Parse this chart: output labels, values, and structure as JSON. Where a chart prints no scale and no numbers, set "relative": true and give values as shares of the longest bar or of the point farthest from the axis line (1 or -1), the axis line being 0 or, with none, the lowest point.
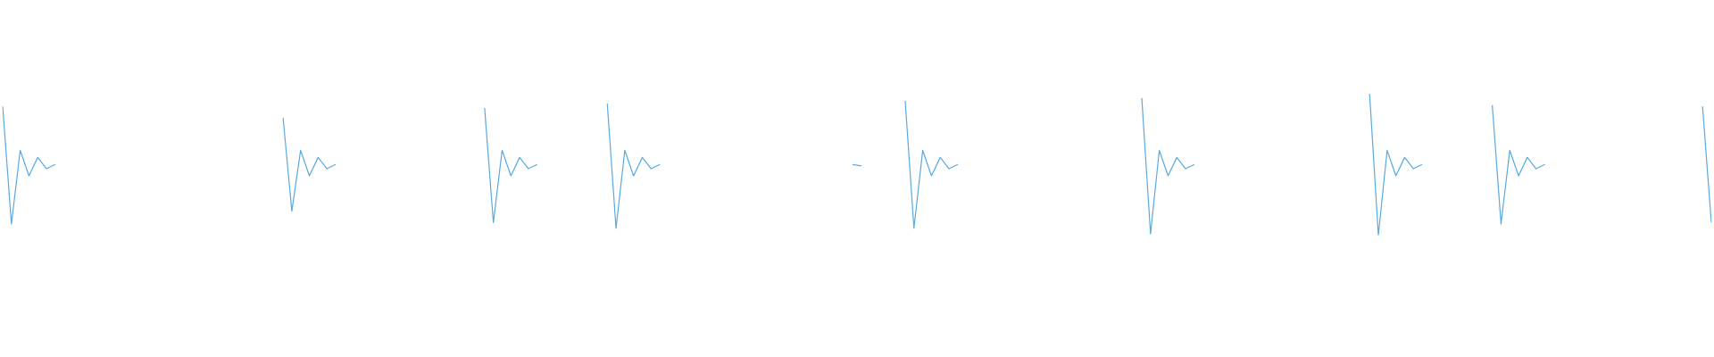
{
  "chart_data": {
    "type": "line",
    "relative": true,
    "grid": false,
    "legend": false,
    "marker": "none",
    "line_style": "solid",
    "categories": [
      null,
      null,
      null,
      null,
      null,
      null,
      null,
      null,
      null,
      null,
      null,
      null,
      null,
      null,
      null,
      null,
      null,
      null,
      null,
      null,
      null,
      null,
      null,
      null,
      null,
      null,
      null,
      null,
      null,
      null,
      null,
      null,
      null,
      null,
      null,
      null,
      null,
      null,
      null,
      null,
      null,
      null,
      null,
      null,
      null,
      null,
      null,
      null,
      null,
      null,
      null,
      null,
      null,
      null,
      null,
      null,
      null,
      null,
      null,
      null,
      null,
      null,
      null,
      null,
      null,
      null,
      null,
      null,
      null,
      null,
      null,
      null,
      null,
      null,
      null,
      null,
      null,
      null,
      null,
      null,
      null,
      null,
      null,
      null,
      null,
      null,
      null,
      null,
      null,
      null,
      null,
      null,
      null,
      null,
      null,
      null,
      null,
      null,
      null,
      null,
      null,
      null,
      null,
      null,
      null,
      null,
      null,
      null,
      null,
      null,
      null,
      null,
      null,
      null,
      null,
      null,
      null,
      null,
      null,
      null,
      null,
      null,
      null,
      null,
      null,
      null,
      null,
      null,
      null,
      null,
      null,
      null,
      null,
      null,
      null,
      null,
      null,
      null,
      null,
      null,
      null,
      null,
      null,
      null,
      null,
      null,
      null,
      null,
      null,
      null,
      null,
      null,
      null,
      null,
      null,
      null,
      null,
      null,
      null,
      null,
      null,
      null,
      null,
      null,
      null,
      null,
      null,
      null,
      null,
      null,
      null,
      null,
      null,
      null,
      null,
      null,
      null,
      null,
      null,
      null,
      null,
      null,
      null,
      null,
      null,
      null,
      null,
      null,
      null,
      null,
      null,
      null,
      null,
      null,
      null,
      null
    ],
    "series": [
      {
        "color": "#5aa9e0",
        "values": [
          0.91,
          0.08,
          0.6,
          0.42,
          0.55,
          0.47,
          0.5,
          null,
          null,
          null,
          null,
          null,
          null,
          null,
          null,
          null,
          null,
          null,
          null,
          null,
          null,
          null,
          null,
          null,
          null,
          null,
          null,
          null,
          null,
          null,
          null,
          null,
          null,
          null,
          null,
          null,
          null,
          null,
          null,
          null,
          null,
          null,
          null,
          null,
          null,
          null,
          null,
          null,
          null,
          null,
          null,
          null,
          null,
          null,
          null,
          null,
          null,
          null,
          null,
          null,
          null,
          null,
          null,
          null,
          null,
          null,
          null,
          null,
          null,
          null,
          null,
          null,
          null,
          null,
          null,
          null,
          null,
          null,
          null,
          null,
          null,
          null,
          null,
          null,
          null,
          null,
          null,
          null,
          null,
          null,
          null,
          null,
          null,
          null,
          null,
          null,
          null,
          null,
          null,
          null,
          null,
          null,
          null,
          null,
          null,
          null,
          null,
          null,
          null,
          null,
          null,
          null,
          null,
          null,
          null,
          null,
          null,
          null,
          null,
          null,
          null,
          null,
          null,
          null,
          null,
          null,
          null,
          null,
          null,
          null,
          null,
          null,
          null,
          null,
          null,
          null,
          null,
          null,
          null,
          null,
          null,
          null,
          null,
          null,
          null,
          null,
          null,
          null,
          null,
          null,
          null,
          null,
          null,
          null,
          null,
          null,
          null,
          null,
          null,
          null,
          null,
          null,
          null,
          null,
          null,
          null,
          null,
          null,
          null,
          null,
          null,
          null,
          null,
          null,
          null,
          null,
          null,
          null,
          null,
          null,
          null,
          null,
          null,
          null,
          null,
          null,
          null,
          null,
          null,
          null,
          null,
          null,
          null,
          null,
          null,
          null
        ]
      },
      {
        "color": "#5aa9e0",
        "values": [
          null,
          null,
          null,
          null,
          null,
          null,
          null,
          null,
          null,
          null,
          null,
          null,
          null,
          null,
          null,
          null,
          null,
          null,
          null,
          null,
          null,
          null,
          null,
          null,
          null,
          null,
          null,
          null,
          null,
          null,
          null,
          null,
          0.83,
          0.17,
          0.6,
          0.42,
          0.55,
          0.47,
          0.5,
          null,
          null,
          null,
          null,
          null,
          null,
          null,
          null,
          null,
          null,
          null,
          null,
          null,
          null,
          null,
          null,
          null,
          null,
          null,
          null,
          null,
          null,
          null,
          null,
          null,
          null,
          null,
          null,
          null,
          null,
          null,
          null,
          null,
          null,
          null,
          null,
          null,
          null,
          null,
          null,
          null,
          null,
          null,
          null,
          null,
          null,
          null,
          null,
          null,
          null,
          null,
          null,
          null,
          null,
          null,
          null,
          null,
          null,
          null,
          null,
          null,
          null,
          null,
          null,
          null,
          null,
          null,
          null,
          null,
          null,
          null,
          null,
          null,
          null,
          null,
          null,
          null,
          null,
          null,
          null,
          null,
          null,
          null,
          null,
          null,
          null,
          null,
          null,
          null,
          null,
          null,
          null,
          null,
          null,
          null,
          null,
          null,
          null,
          null,
          null,
          null,
          null,
          null,
          null,
          null,
          null,
          null,
          null,
          null,
          null,
          null,
          null,
          null,
          null,
          null,
          null,
          null,
          null,
          null,
          null,
          null,
          null,
          null,
          null,
          null,
          null,
          null,
          null,
          null,
          null,
          null,
          null,
          null,
          null,
          null,
          null,
          null,
          null,
          null,
          null,
          null,
          null,
          null,
          null,
          null,
          null,
          null,
          null,
          null,
          null,
          null,
          null,
          null,
          null,
          null,
          null,
          null
        ]
      },
      {
        "color": "#5aa9e0",
        "values": [
          null,
          null,
          null,
          null,
          null,
          null,
          null,
          null,
          null,
          null,
          null,
          null,
          null,
          null,
          null,
          null,
          null,
          null,
          null,
          null,
          null,
          null,
          null,
          null,
          null,
          null,
          null,
          null,
          null,
          null,
          null,
          null,
          null,
          null,
          null,
          null,
          null,
          null,
          null,
          null,
          null,
          null,
          null,
          null,
          null,
          null,
          null,
          null,
          null,
          null,
          null,
          null,
          null,
          null,
          null,
          0.9,
          0.09,
          0.6,
          0.42,
          0.55,
          0.47,
          0.5,
          null,
          null,
          null,
          null,
          null,
          null,
          null,
          null,
          null,
          null,
          null,
          null,
          null,
          null,
          null,
          null,
          null,
          null,
          null,
          null,
          null,
          null,
          null,
          null,
          null,
          null,
          null,
          null,
          null,
          null,
          null,
          null,
          null,
          null,
          null,
          null,
          null,
          null,
          null,
          null,
          null,
          null,
          null,
          null,
          null,
          null,
          null,
          null,
          null,
          null,
          null,
          null,
          null,
          null,
          null,
          null,
          null,
          null,
          null,
          null,
          null,
          null,
          null,
          null,
          null,
          null,
          null,
          null,
          null,
          null,
          null,
          null,
          null,
          null,
          null,
          null,
          null,
          null,
          null,
          null,
          null,
          null,
          null,
          null,
          null,
          null,
          null,
          null,
          null,
          null,
          null,
          null,
          null,
          null,
          null,
          null,
          null,
          null,
          null,
          null,
          null,
          null,
          null,
          null,
          null,
          null,
          null,
          null,
          null,
          null,
          null,
          null,
          null,
          null,
          null,
          null,
          null,
          null,
          null,
          null,
          null,
          null,
          null,
          null,
          null,
          null,
          null,
          null,
          null,
          null,
          null,
          null,
          null,
          null
        ]
      },
      {
        "color": "#5aa9e0",
        "values": [
          null,
          null,
          null,
          null,
          null,
          null,
          null,
          null,
          null,
          null,
          null,
          null,
          null,
          null,
          null,
          null,
          null,
          null,
          null,
          null,
          null,
          null,
          null,
          null,
          null,
          null,
          null,
          null,
          null,
          null,
          null,
          null,
          null,
          null,
          null,
          null,
          null,
          null,
          null,
          null,
          null,
          null,
          null,
          null,
          null,
          null,
          null,
          null,
          null,
          null,
          null,
          null,
          null,
          null,
          null,
          null,
          null,
          null,
          null,
          null,
          null,
          null,
          null,
          null,
          null,
          null,
          null,
          null,
          null,
          0.93,
          0.05,
          0.6,
          0.42,
          0.55,
          0.47,
          0.5,
          null,
          null,
          null,
          null,
          null,
          null,
          null,
          null,
          null,
          null,
          null,
          null,
          null,
          null,
          null,
          null,
          null,
          null,
          null,
          null,
          null,
          null,
          null,
          null,
          null,
          null,
          null,
          null,
          null,
          null,
          null,
          null,
          null,
          null,
          null,
          null,
          null,
          null,
          null,
          null,
          null,
          null,
          null,
          null,
          null,
          null,
          null,
          null,
          null,
          null,
          null,
          null,
          null,
          null,
          null,
          null,
          null,
          null,
          null,
          null,
          null,
          null,
          null,
          null,
          null,
          null,
          null,
          null,
          null,
          null,
          null,
          null,
          null,
          null,
          null,
          null,
          null,
          null,
          null,
          null,
          null,
          null,
          null,
          null,
          null,
          null,
          null,
          null,
          null,
          null,
          null,
          null,
          null,
          null,
          null,
          null,
          null,
          null,
          null,
          null,
          null,
          null,
          null,
          null,
          null,
          null,
          null,
          null,
          null,
          null,
          null,
          null,
          null,
          null,
          null,
          null,
          null,
          null,
          null,
          null
        ]
      },
      {
        "color": "#5aa9e0",
        "values": [
          null,
          null,
          null,
          null,
          null,
          null,
          null,
          null,
          null,
          null,
          null,
          null,
          null,
          null,
          null,
          null,
          null,
          null,
          null,
          null,
          null,
          null,
          null,
          null,
          null,
          null,
          null,
          null,
          null,
          null,
          null,
          null,
          null,
          null,
          null,
          null,
          null,
          null,
          null,
          null,
          null,
          null,
          null,
          null,
          null,
          null,
          null,
          null,
          null,
          null,
          null,
          null,
          null,
          null,
          null,
          null,
          null,
          null,
          null,
          null,
          null,
          null,
          null,
          null,
          null,
          null,
          null,
          null,
          null,
          null,
          null,
          null,
          null,
          null,
          null,
          null,
          null,
          null,
          null,
          null,
          null,
          null,
          null,
          null,
          null,
          null,
          null,
          null,
          null,
          null,
          null,
          null,
          null,
          null,
          null,
          null,
          null,
          0.5,
          0.49,
          null,
          null,
          null,
          null,
          null,
          null,
          null,
          null,
          null,
          null,
          null,
          null,
          null,
          null,
          null,
          null,
          null,
          null,
          null,
          null,
          null,
          null,
          null,
          null,
          null,
          null,
          null,
          null,
          null,
          null,
          null,
          null,
          null,
          null,
          null,
          null,
          null,
          null,
          null,
          null,
          null,
          null,
          null,
          null,
          null,
          null,
          null,
          null,
          null,
          null,
          null,
          null,
          null,
          null,
          null,
          null,
          null,
          null,
          null,
          null,
          null,
          null,
          null,
          null,
          null,
          null,
          null,
          null,
          null,
          null,
          null,
          null,
          null,
          null,
          null,
          null,
          null,
          null,
          null,
          null,
          null,
          null,
          null,
          null,
          null,
          null,
          null,
          null,
          null,
          null,
          null,
          null,
          null,
          null,
          null,
          null,
          null
        ]
      },
      {
        "color": "#5aa9e0",
        "values": [
          null,
          null,
          null,
          null,
          null,
          null,
          null,
          null,
          null,
          null,
          null,
          null,
          null,
          null,
          null,
          null,
          null,
          null,
          null,
          null,
          null,
          null,
          null,
          null,
          null,
          null,
          null,
          null,
          null,
          null,
          null,
          null,
          null,
          null,
          null,
          null,
          null,
          null,
          null,
          null,
          null,
          null,
          null,
          null,
          null,
          null,
          null,
          null,
          null,
          null,
          null,
          null,
          null,
          null,
          null,
          null,
          null,
          null,
          null,
          null,
          null,
          null,
          null,
          null,
          null,
          null,
          null,
          null,
          null,
          null,
          null,
          null,
          null,
          null,
          null,
          null,
          null,
          null,
          null,
          null,
          null,
          null,
          null,
          null,
          null,
          null,
          null,
          null,
          null,
          null,
          null,
          null,
          null,
          null,
          null,
          null,
          null,
          null,
          null,
          null,
          null,
          null,
          null,
          0.95,
          0.05,
          0.6,
          0.42,
          0.55,
          0.47,
          0.5,
          null,
          null,
          null,
          null,
          null,
          null,
          null,
          null,
          null,
          null,
          null,
          null,
          null,
          null,
          null,
          null,
          null,
          null,
          null,
          null,
          null,
          null,
          null,
          null,
          null,
          null,
          null,
          null,
          null,
          null,
          null,
          null,
          null,
          null,
          null,
          null,
          null,
          null,
          null,
          null,
          null,
          null,
          null,
          null,
          null,
          null,
          null,
          null,
          null,
          null,
          null,
          null,
          null,
          null,
          null,
          null,
          null,
          null,
          null,
          null,
          null,
          null,
          null,
          null,
          null,
          null,
          null,
          null,
          null,
          null,
          null,
          null,
          null,
          null,
          null,
          null,
          null,
          null,
          null,
          null,
          null,
          null,
          null,
          null,
          null,
          null
        ]
      },
      {
        "color": "#5aa9e0",
        "values": [
          null,
          null,
          null,
          null,
          null,
          null,
          null,
          null,
          null,
          null,
          null,
          null,
          null,
          null,
          null,
          null,
          null,
          null,
          null,
          null,
          null,
          null,
          null,
          null,
          null,
          null,
          null,
          null,
          null,
          null,
          null,
          null,
          null,
          null,
          null,
          null,
          null,
          null,
          null,
          null,
          null,
          null,
          null,
          null,
          null,
          null,
          null,
          null,
          null,
          null,
          null,
          null,
          null,
          null,
          null,
          null,
          null,
          null,
          null,
          null,
          null,
          null,
          null,
          null,
          null,
          null,
          null,
          null,
          null,
          null,
          null,
          null,
          null,
          null,
          null,
          null,
          null,
          null,
          null,
          null,
          null,
          null,
          null,
          null,
          null,
          null,
          null,
          null,
          null,
          null,
          null,
          null,
          null,
          null,
          null,
          null,
          null,
          null,
          null,
          null,
          null,
          null,
          null,
          null,
          null,
          null,
          null,
          null,
          null,
          null,
          null,
          null,
          null,
          null,
          null,
          null,
          null,
          null,
          null,
          null,
          null,
          null,
          null,
          null,
          null,
          null,
          null,
          null,
          null,
          null,
          0.97,
          0.01,
          0.6,
          0.42,
          0.55,
          0.47,
          0.5,
          null,
          null,
          null,
          null,
          null,
          null,
          null,
          null,
          null,
          null,
          null,
          null,
          null,
          null,
          null,
          null,
          null,
          null,
          null,
          null,
          null,
          null,
          null,
          null,
          null,
          null,
          null,
          null,
          null,
          null,
          null,
          null,
          null,
          null,
          null,
          null,
          null,
          null,
          null,
          null,
          null,
          null,
          null,
          null,
          null,
          null,
          null,
          null,
          null,
          null,
          null,
          null,
          null,
          null,
          null,
          null,
          null,
          null,
          null
        ]
      },
      {
        "color": "#5aa9e0",
        "values": [
          null,
          null,
          null,
          null,
          null,
          null,
          null,
          null,
          null,
          null,
          null,
          null,
          null,
          null,
          null,
          null,
          null,
          null,
          null,
          null,
          null,
          null,
          null,
          null,
          null,
          null,
          null,
          null,
          null,
          null,
          null,
          null,
          null,
          null,
          null,
          null,
          null,
          null,
          null,
          null,
          null,
          null,
          null,
          null,
          null,
          null,
          null,
          null,
          null,
          null,
          null,
          null,
          null,
          null,
          null,
          null,
          null,
          null,
          null,
          null,
          null,
          null,
          null,
          null,
          null,
          null,
          null,
          null,
          null,
          null,
          null,
          null,
          null,
          null,
          null,
          null,
          null,
          null,
          null,
          null,
          null,
          null,
          null,
          null,
          null,
          null,
          null,
          null,
          null,
          null,
          null,
          null,
          null,
          null,
          null,
          null,
          null,
          null,
          null,
          null,
          null,
          null,
          null,
          null,
          null,
          null,
          null,
          null,
          null,
          null,
          null,
          null,
          null,
          null,
          null,
          null,
          null,
          null,
          null,
          null,
          null,
          null,
          null,
          null,
          null,
          null,
          null,
          null,
          null,
          null,
          null,
          null,
          null,
          null,
          null,
          null,
          null,
          null,
          null,
          null,
          null,
          null,
          null,
          null,
          null,
          null,
          null,
          null,
          null,
          null,
          null,
          null,
          null,
          null,
          null,
          null,
          1,
          0,
          0.6,
          0.42,
          0.55,
          0.47,
          0.5,
          null,
          null,
          null,
          null,
          null,
          null,
          null,
          null,
          null,
          null,
          null,
          null,
          null,
          null,
          null,
          null,
          null,
          null,
          null,
          null,
          null,
          null,
          null,
          null,
          null,
          null,
          null,
          null,
          null,
          null,
          null,
          null,
          null
        ]
      },
      {
        "color": "#5aa9e0",
        "values": [
          null,
          null,
          null,
          null,
          null,
          null,
          null,
          null,
          null,
          null,
          null,
          null,
          null,
          null,
          null,
          null,
          null,
          null,
          null,
          null,
          null,
          null,
          null,
          null,
          null,
          null,
          null,
          null,
          null,
          null,
          null,
          null,
          null,
          null,
          null,
          null,
          null,
          null,
          null,
          null,
          null,
          null,
          null,
          null,
          null,
          null,
          null,
          null,
          null,
          null,
          null,
          null,
          null,
          null,
          null,
          null,
          null,
          null,
          null,
          null,
          null,
          null,
          null,
          null,
          null,
          null,
          null,
          null,
          null,
          null,
          null,
          null,
          null,
          null,
          null,
          null,
          null,
          null,
          null,
          null,
          null,
          null,
          null,
          null,
          null,
          null,
          null,
          null,
          null,
          null,
          null,
          null,
          null,
          null,
          null,
          null,
          null,
          null,
          null,
          null,
          null,
          null,
          null,
          null,
          null,
          null,
          null,
          null,
          null,
          null,
          null,
          null,
          null,
          null,
          null,
          null,
          null,
          null,
          null,
          null,
          null,
          null,
          null,
          null,
          null,
          null,
          null,
          null,
          null,
          null,
          null,
          null,
          null,
          null,
          null,
          null,
          null,
          null,
          null,
          null,
          null,
          null,
          null,
          null,
          null,
          null,
          null,
          null,
          null,
          null,
          null,
          null,
          null,
          null,
          null,
          null,
          null,
          null,
          null,
          null,
          null,
          null,
          null,
          null,
          null,
          null,
          null,
          null,
          null,
          null,
          0.92,
          0.08,
          0.6,
          0.42,
          0.55,
          0.47,
          0.5,
          null,
          null,
          null,
          null,
          null,
          null,
          null,
          null,
          null,
          null,
          null,
          null,
          null,
          null,
          null,
          null,
          null,
          null,
          null
        ]
      },
      {
        "color": "#5aa9e0",
        "values": [
          null,
          null,
          null,
          null,
          null,
          null,
          null,
          null,
          null,
          null,
          null,
          null,
          null,
          null,
          null,
          null,
          null,
          null,
          null,
          null,
          null,
          null,
          null,
          null,
          null,
          null,
          null,
          null,
          null,
          null,
          null,
          null,
          null,
          null,
          null,
          null,
          null,
          null,
          null,
          null,
          null,
          null,
          null,
          null,
          null,
          null,
          null,
          null,
          null,
          null,
          null,
          null,
          null,
          null,
          null,
          null,
          null,
          null,
          null,
          null,
          null,
          null,
          null,
          null,
          null,
          null,
          null,
          null,
          null,
          null,
          null,
          null,
          null,
          null,
          null,
          null,
          null,
          null,
          null,
          null,
          null,
          null,
          null,
          null,
          null,
          null,
          null,
          null,
          null,
          null,
          null,
          null,
          null,
          null,
          null,
          null,
          null,
          null,
          null,
          null,
          null,
          null,
          null,
          null,
          null,
          null,
          null,
          null,
          null,
          null,
          null,
          null,
          null,
          null,
          null,
          null,
          null,
          null,
          null,
          null,
          null,
          null,
          null,
          null,
          null,
          null,
          null,
          null,
          null,
          null,
          null,
          null,
          null,
          null,
          null,
          null,
          null,
          null,
          null,
          null,
          null,
          null,
          null,
          null,
          null,
          null,
          null,
          null,
          null,
          null,
          null,
          null,
          null,
          null,
          null,
          null,
          null,
          null,
          null,
          null,
          null,
          null,
          null,
          null,
          null,
          null,
          null,
          null,
          null,
          null,
          null,
          null,
          null,
          null,
          null,
          null,
          null,
          null,
          null,
          null,
          null,
          null,
          null,
          null,
          null,
          null,
          null,
          null,
          null,
          null,
          null,
          null,
          null,
          null,
          0.91,
          0.09
        ]
      }
    ]
  }
}
